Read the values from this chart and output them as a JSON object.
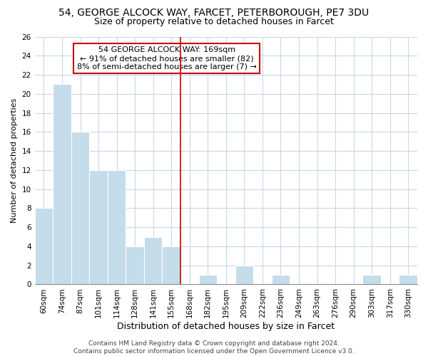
{
  "title": "54, GEORGE ALCOCK WAY, FARCET, PETERBOROUGH, PE7 3DU",
  "subtitle": "Size of property relative to detached houses in Farcet",
  "xlabel": "Distribution of detached houses by size in Farcet",
  "ylabel": "Number of detached properties",
  "bin_labels": [
    "60sqm",
    "74sqm",
    "87sqm",
    "101sqm",
    "114sqm",
    "128sqm",
    "141sqm",
    "155sqm",
    "168sqm",
    "182sqm",
    "195sqm",
    "209sqm",
    "222sqm",
    "236sqm",
    "249sqm",
    "263sqm",
    "276sqm",
    "290sqm",
    "303sqm",
    "317sqm",
    "330sqm"
  ],
  "bar_heights": [
    8,
    21,
    16,
    12,
    12,
    4,
    5,
    4,
    0,
    1,
    0,
    2,
    0,
    1,
    0,
    0,
    0,
    0,
    1,
    0,
    1
  ],
  "bar_color": "#c5dcea",
  "bar_edge_color": "#c5dcea",
  "reference_line_color": "#cc0000",
  "annotation_text": "54 GEORGE ALCOCK WAY: 169sqm\n← 91% of detached houses are smaller (82)\n8% of semi-detached houses are larger (7) →",
  "annotation_box_color": "#ffffff",
  "annotation_box_edge_color": "#cc0000",
  "ylim": [
    0,
    26
  ],
  "yticks": [
    0,
    2,
    4,
    6,
    8,
    10,
    12,
    14,
    16,
    18,
    20,
    22,
    24,
    26
  ],
  "grid_color": "#c8d8e8",
  "background_color": "#ffffff",
  "footer_text": "Contains HM Land Registry data © Crown copyright and database right 2024.\nContains public sector information licensed under the Open Government Licence v3.0.",
  "title_fontsize": 10,
  "subtitle_fontsize": 9,
  "xlabel_fontsize": 9,
  "ylabel_fontsize": 8,
  "tick_fontsize": 7.5,
  "annotation_fontsize": 8,
  "footer_fontsize": 6.5
}
